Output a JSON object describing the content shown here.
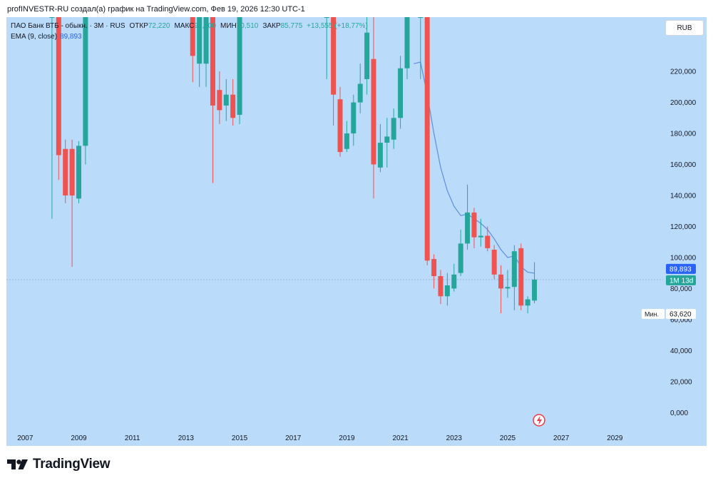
{
  "header": {
    "credit": "profINVESTR-RU создал(а) график на TradingView.com, Фев 19, 2026 12:30 UTC-1"
  },
  "legend": {
    "symbol": "ПАО Банк ВТБ - обыкн. · 3М · RUS",
    "open_label": "ОТКР",
    "open": "72,220",
    "high_label": "МАКС",
    "high": "97,000",
    "low_label": "МИН",
    "low": "70,510",
    "close_label": "ЗАКР",
    "close": "85,775",
    "change": "+13,555 (+18,77%)",
    "ema_label": "EMA (9, close)",
    "ema_value": "89,893"
  },
  "currency": "RUB",
  "price_tags": {
    "ema": "89,893",
    "timer": "1M 13d",
    "min_label": "Мин.",
    "min_value": "63,620"
  },
  "brand": {
    "name": "TradingView"
  },
  "colors": {
    "up": "#26a69a",
    "down": "#ef5350",
    "ema": "#2962ff",
    "background": "#bbdbfb"
  },
  "chart_data": {
    "type": "candlestick",
    "interval": "3M",
    "ylim": [
      -10000,
      255000
    ],
    "xlim": [
      2006.3,
      2030.8
    ],
    "y_ticks": [
      "220,000",
      "200,000",
      "180,000",
      "160,000",
      "140,000",
      "120,000",
      "100,000",
      "80,000",
      "60,000",
      "40,000",
      "20,000",
      "0,000"
    ],
    "y_tick_values": [
      220000,
      200000,
      180000,
      160000,
      140000,
      120000,
      100000,
      80000,
      60000,
      40000,
      20000,
      0
    ],
    "x_ticks": [
      "2007",
      "2009",
      "2011",
      "2013",
      "2015",
      "2017",
      "2019",
      "2021",
      "2023",
      "2025",
      "2027",
      "2029"
    ],
    "x_tick_values": [
      2007,
      2009,
      2011,
      2013,
      2015,
      2017,
      2019,
      2021,
      2023,
      2025,
      2027,
      2029
    ],
    "candles": [
      {
        "t": 2008.0,
        "o": 255000,
        "h": 300000,
        "l": 125000,
        "c": 255000
      },
      {
        "t": 2008.25,
        "o": 255000,
        "h": 300000,
        "l": 150000,
        "c": 166000
      },
      {
        "t": 2008.5,
        "o": 170000,
        "h": 176000,
        "l": 135000,
        "c": 140000
      },
      {
        "t": 2008.75,
        "o": 170000,
        "h": 176000,
        "l": 94000,
        "c": 140000
      },
      {
        "t": 2009.0,
        "o": 138000,
        "h": 175000,
        "l": 135000,
        "c": 172000
      },
      {
        "t": 2009.25,
        "o": 172000,
        "h": 300000,
        "l": 160000,
        "c": 255000
      },
      {
        "t": 2013.25,
        "o": 255000,
        "h": 300000,
        "l": 213000,
        "c": 230000
      },
      {
        "t": 2013.5,
        "o": 225000,
        "h": 300000,
        "l": 210000,
        "c": 255000
      },
      {
        "t": 2013.75,
        "o": 225000,
        "h": 300000,
        "l": 210000,
        "c": 255000
      },
      {
        "t": 2014.0,
        "o": 255000,
        "h": 300000,
        "l": 148000,
        "c": 198000
      },
      {
        "t": 2014.25,
        "o": 208000,
        "h": 220000,
        "l": 186000,
        "c": 195000
      },
      {
        "t": 2014.5,
        "o": 198000,
        "h": 215000,
        "l": 188000,
        "c": 205000
      },
      {
        "t": 2014.75,
        "o": 205000,
        "h": 215000,
        "l": 185000,
        "c": 190000
      },
      {
        "t": 2015.0,
        "o": 192000,
        "h": 300000,
        "l": 186000,
        "c": 255000
      },
      {
        "t": 2018.25,
        "o": 255000,
        "h": 300000,
        "l": 215000,
        "c": 255000
      },
      {
        "t": 2018.5,
        "o": 255000,
        "h": 300000,
        "l": 185000,
        "c": 205000
      },
      {
        "t": 2018.75,
        "o": 202000,
        "h": 210000,
        "l": 165000,
        "c": 168000
      },
      {
        "t": 2019.0,
        "o": 170000,
        "h": 188000,
        "l": 168000,
        "c": 180000
      },
      {
        "t": 2019.25,
        "o": 180000,
        "h": 205000,
        "l": 172000,
        "c": 200000
      },
      {
        "t": 2019.5,
        "o": 200000,
        "h": 225000,
        "l": 193000,
        "c": 212000
      },
      {
        "t": 2019.75,
        "o": 215000,
        "h": 255000,
        "l": 205000,
        "c": 245000
      },
      {
        "t": 2020.0,
        "o": 228000,
        "h": 255000,
        "l": 138000,
        "c": 160000
      },
      {
        "t": 2020.25,
        "o": 158000,
        "h": 186000,
        "l": 155000,
        "c": 174000
      },
      {
        "t": 2020.5,
        "o": 174000,
        "h": 190000,
        "l": 158000,
        "c": 178000
      },
      {
        "t": 2020.75,
        "o": 176000,
        "h": 196000,
        "l": 170000,
        "c": 190000
      },
      {
        "t": 2021.0,
        "o": 190000,
        "h": 230000,
        "l": 183000,
        "c": 222000
      },
      {
        "t": 2021.25,
        "o": 222000,
        "h": 300000,
        "l": 215000,
        "c": 255000
      },
      {
        "t": 2021.75,
        "o": 255000,
        "h": 300000,
        "l": 215000,
        "c": 255000
      },
      {
        "t": 2022.0,
        "o": 255000,
        "h": 300000,
        "l": 95000,
        "c": 98000
      },
      {
        "t": 2022.25,
        "o": 99000,
        "h": 102000,
        "l": 80000,
        "c": 88000
      },
      {
        "t": 2022.5,
        "o": 88000,
        "h": 92000,
        "l": 70000,
        "c": 75000
      },
      {
        "t": 2022.75,
        "o": 75000,
        "h": 90000,
        "l": 69000,
        "c": 82000
      },
      {
        "t": 2023.0,
        "o": 80000,
        "h": 96000,
        "l": 78000,
        "c": 89000
      },
      {
        "t": 2023.25,
        "o": 90000,
        "h": 118000,
        "l": 88000,
        "c": 109000
      },
      {
        "t": 2023.5,
        "o": 109000,
        "h": 147000,
        "l": 105000,
        "c": 129000
      },
      {
        "t": 2023.75,
        "o": 129000,
        "h": 132000,
        "l": 106000,
        "c": 113000
      },
      {
        "t": 2024.0,
        "o": 113000,
        "h": 125000,
        "l": 107000,
        "c": 114000
      },
      {
        "t": 2024.25,
        "o": 114000,
        "h": 120000,
        "l": 104000,
        "c": 106000
      },
      {
        "t": 2024.5,
        "o": 105000,
        "h": 108000,
        "l": 86000,
        "c": 89000
      },
      {
        "t": 2024.75,
        "o": 89000,
        "h": 95000,
        "l": 64000,
        "c": 80000
      },
      {
        "t": 2025.0,
        "o": 80000,
        "h": 92000,
        "l": 74000,
        "c": 81000
      },
      {
        "t": 2025.25,
        "o": 81000,
        "h": 108000,
        "l": 66000,
        "c": 104000
      },
      {
        "t": 2025.5,
        "o": 106000,
        "h": 109000,
        "l": 66000,
        "c": 69000
      },
      {
        "t": 2025.75,
        "o": 69000,
        "h": 75000,
        "l": 64000,
        "c": 73000
      },
      {
        "t": 2026.0,
        "o": 72220,
        "h": 97000,
        "l": 70510,
        "c": 85775
      }
    ],
    "ema": {
      "name": "EMA (9, close)",
      "points": [
        [
          2021.5,
          225000
        ],
        [
          2021.75,
          226000
        ],
        [
          2022.0,
          205000
        ],
        [
          2022.25,
          180000
        ],
        [
          2022.5,
          158000
        ],
        [
          2022.75,
          143000
        ],
        [
          2023.0,
          133000
        ],
        [
          2023.25,
          127000
        ],
        [
          2023.5,
          128000
        ],
        [
          2023.75,
          125000
        ],
        [
          2024.0,
          122000
        ],
        [
          2024.25,
          118000
        ],
        [
          2024.5,
          112000
        ],
        [
          2024.75,
          105000
        ],
        [
          2025.0,
          100000
        ],
        [
          2025.25,
          101000
        ],
        [
          2025.5,
          94000
        ],
        [
          2025.75,
          90500
        ],
        [
          2026.0,
          89893
        ]
      ]
    }
  }
}
